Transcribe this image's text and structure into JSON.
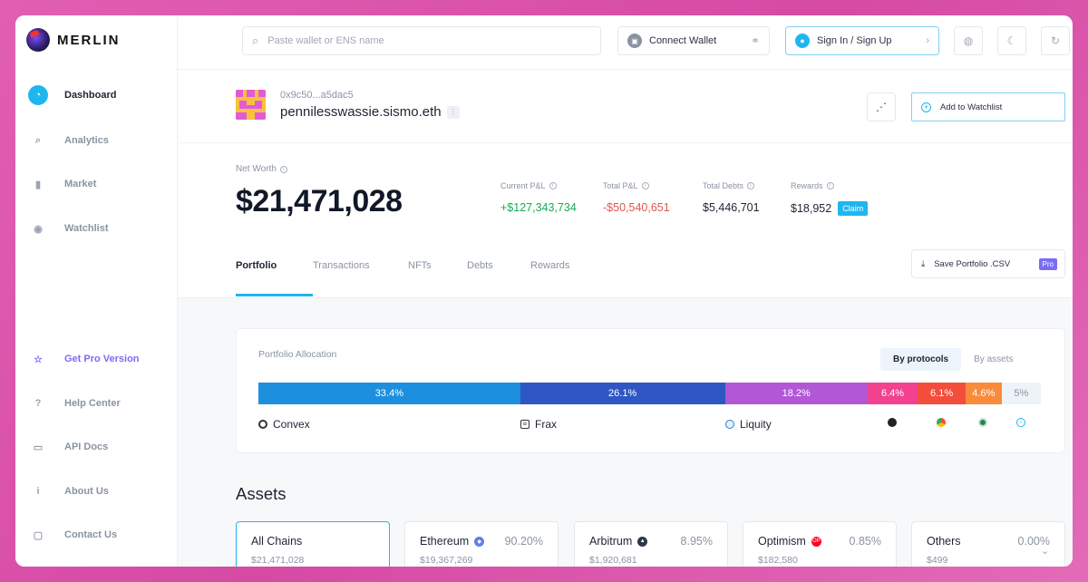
{
  "brand": {
    "name": "MERLIN"
  },
  "sidebar": {
    "items": [
      {
        "label": "Dashboard",
        "icon": "dashboard-icon",
        "glyph": "◔"
      },
      {
        "label": "Analytics",
        "icon": "search-icon",
        "glyph": "⌕"
      },
      {
        "label": "Market",
        "icon": "bar-chart-icon",
        "glyph": "▮"
      },
      {
        "label": "Watchlist",
        "icon": "eye-icon",
        "glyph": "◉"
      }
    ],
    "bottom_items": [
      {
        "label": "Get Pro Version",
        "icon": "star-icon",
        "glyph": "☆"
      },
      {
        "label": "Help Center",
        "icon": "help-icon",
        "glyph": "?"
      },
      {
        "label": "API Docs",
        "icon": "book-icon",
        "glyph": "▭"
      },
      {
        "label": "About Us",
        "icon": "info-icon",
        "glyph": "i"
      },
      {
        "label": "Contact Us",
        "icon": "chat-icon",
        "glyph": "▢"
      }
    ]
  },
  "topbar": {
    "search_placeholder": "Paste wallet or ENS name",
    "connect_label": "Connect Wallet",
    "sign_label": "Sign In / Sign Up"
  },
  "profile": {
    "address": "0x9c50...a5dac5",
    "ens": "pennilesswassie.sismo.eth",
    "watchlist_label": "Add to Watchlist"
  },
  "stats": {
    "net_worth_label": "Net Worth",
    "net_worth": "$21,471,028",
    "current_pnl_label": "Current P&L",
    "current_pnl": "+$127,343,734",
    "total_pnl_label": "Total P&L",
    "total_pnl": "-$50,540,651",
    "total_debts_label": "Total Debts",
    "total_debts": "$5,446,701",
    "rewards_label": "Rewards",
    "rewards": "$18,952",
    "claim_label": "Claim"
  },
  "tabs": [
    "Portfolio",
    "Transactions",
    "NFTs",
    "Debts",
    "Rewards"
  ],
  "csv": {
    "label": "Save Portfolio .CSV",
    "badge": "Pro"
  },
  "allocation": {
    "title": "Portfolio Allocation",
    "toggle_on": "By protocols",
    "toggle_off": "By assets",
    "segments": [
      {
        "label": "33.4%",
        "value": 33.4,
        "color": "#1c8fdf"
      },
      {
        "label": "26.1%",
        "value": 26.1,
        "color": "#2f57c4"
      },
      {
        "label": "18.2%",
        "value": 18.2,
        "color": "#b257d6"
      },
      {
        "label": "6.4%",
        "value": 6.4,
        "color": "#f2418f"
      },
      {
        "label": "6.1%",
        "value": 6.1,
        "color": "#f44d3c"
      },
      {
        "label": "4.6%",
        "value": 4.6,
        "color": "#fa8a3c"
      },
      {
        "label": "5%",
        "value": 5,
        "color": "#eef3f8"
      }
    ],
    "legend": [
      {
        "name": "Convex",
        "icon": "convex-icon"
      },
      {
        "name": "Frax",
        "icon": "frax-icon"
      },
      {
        "name": "Liquity",
        "icon": "liquity-icon"
      },
      {
        "name": "",
        "icon": "protocol-4-icon"
      },
      {
        "name": "",
        "icon": "protocol-5-icon"
      },
      {
        "name": "",
        "icon": "protocol-6-icon"
      },
      {
        "name": "",
        "icon": "others-info-icon"
      }
    ]
  },
  "assets": {
    "title": "Assets",
    "chains": [
      {
        "name": "All Chains",
        "pct": "",
        "value": "$21,471,028"
      },
      {
        "name": "Ethereum",
        "pct": "90.20%",
        "value": "$19,367,269",
        "icon_color": "#627eea"
      },
      {
        "name": "Arbitrum",
        "pct": "8.95%",
        "value": "$1,920,681",
        "icon_color": "#2d374b"
      },
      {
        "name": "Optimism",
        "pct": "0.85%",
        "value": "$182,580",
        "icon_color": "#ff0420"
      },
      {
        "name": "Others",
        "pct": "0.00%",
        "value": "$499"
      }
    ]
  }
}
